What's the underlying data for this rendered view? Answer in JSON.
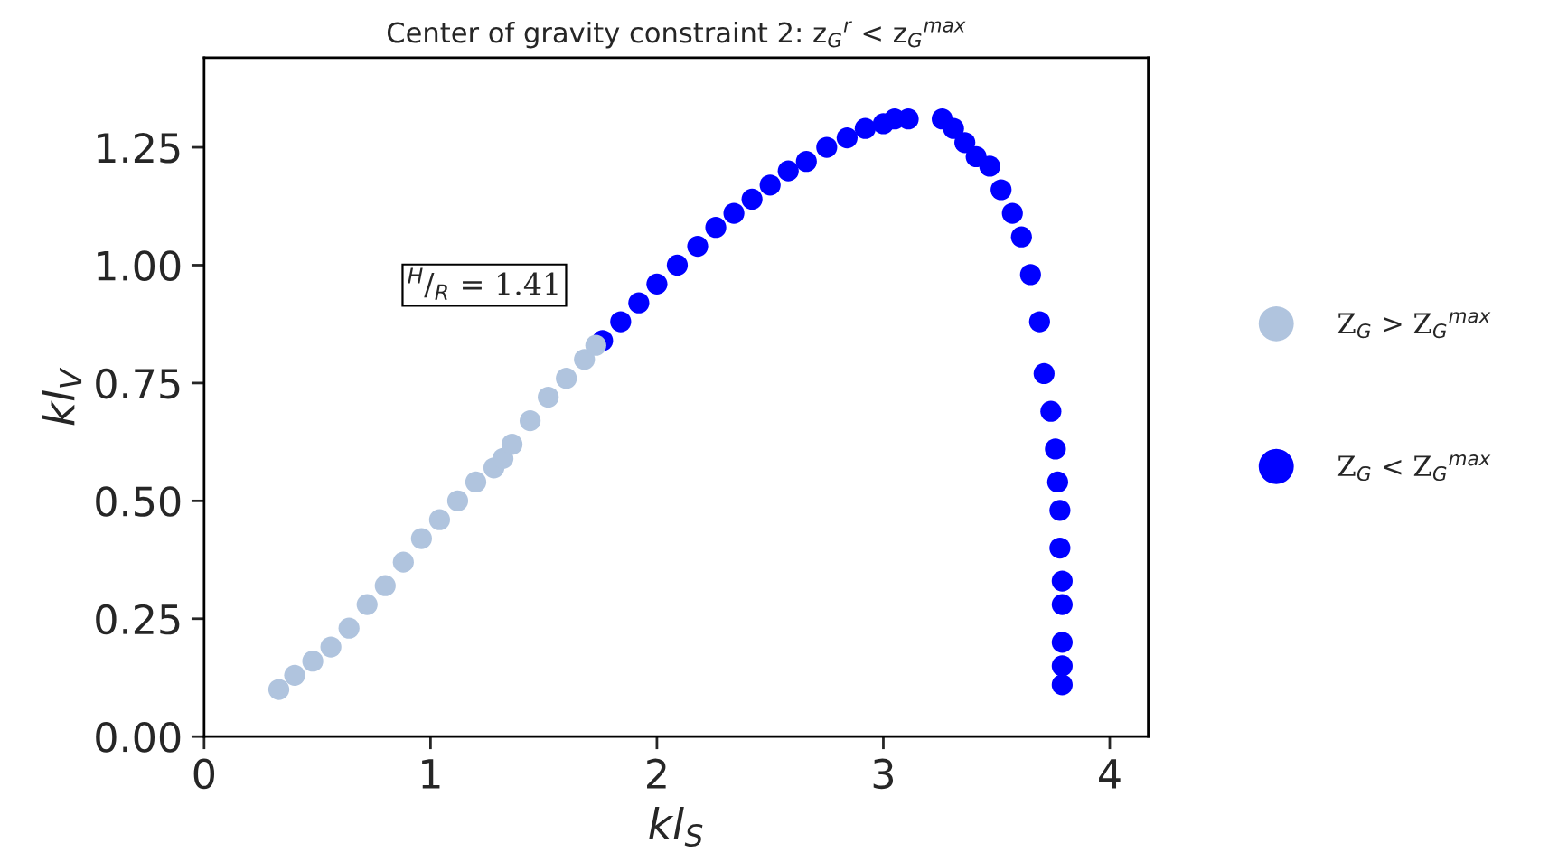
{
  "chart_data": {
    "type": "scatter",
    "title": "Center of gravity constraint 2: z$_{G}$$^{r}$ < z$_{G}$$^{max}$",
    "xlabel": "kl$_{S}$",
    "ylabel": "kl$_{V}$",
    "annotations": [
      "$^{H}$/$_{R}$ = 1.41"
    ],
    "xlim": [
      0,
      4.17
    ],
    "ylim": [
      0,
      1.44
    ],
    "xticks": [
      0,
      1,
      2,
      3,
      4
    ],
    "yticks": [
      {
        "value": 0,
        "label": "0.00"
      },
      {
        "value": 0.25,
        "label": "0.25"
      },
      {
        "value": 0.5,
        "label": "0.50"
      },
      {
        "value": 0.75,
        "label": "0.75"
      },
      {
        "value": 1.0,
        "label": "1.00"
      },
      {
        "value": 1.25,
        "label": "1.25"
      }
    ],
    "grid": false,
    "legend": "right",
    "marker": "circle",
    "series": [
      {
        "name": "Z$_{G}$ > Z$_{G}$$^{max}$",
        "color": "#b0c4de",
        "x": [
          0.33,
          0.4,
          0.48,
          0.56,
          0.64,
          0.72,
          0.8,
          0.88,
          0.96,
          1.04,
          1.12,
          1.2,
          1.28,
          1.32,
          1.36,
          1.44,
          1.52,
          1.6,
          1.68,
          1.73
        ],
        "values": [
          0.1,
          0.13,
          0.16,
          0.19,
          0.23,
          0.28,
          0.32,
          0.37,
          0.42,
          0.46,
          0.5,
          0.54,
          0.57,
          0.59,
          0.62,
          0.67,
          0.72,
          0.76,
          0.8,
          0.83
        ]
      },
      {
        "name": "Z$_{G}$ < Z$_{G}$$^{max}$",
        "color": "#0000ff",
        "x": [
          1.76,
          1.84,
          1.92,
          2.0,
          2.09,
          2.18,
          2.26,
          2.34,
          2.42,
          2.5,
          2.58,
          2.66,
          2.75,
          2.84,
          2.92,
          3.0,
          3.05,
          3.11,
          3.26,
          3.31,
          3.36,
          3.41,
          3.47,
          3.52,
          3.57,
          3.61,
          3.65,
          3.69,
          3.71,
          3.74,
          3.76,
          3.77,
          3.78,
          3.78,
          3.79,
          3.79,
          3.79,
          3.79,
          3.79
        ],
        "values": [
          0.84,
          0.88,
          0.92,
          0.96,
          1.0,
          1.04,
          1.08,
          1.11,
          1.14,
          1.17,
          1.2,
          1.22,
          1.25,
          1.27,
          1.29,
          1.3,
          1.31,
          1.31,
          1.31,
          1.29,
          1.26,
          1.23,
          1.21,
          1.16,
          1.11,
          1.06,
          0.98,
          0.88,
          0.77,
          0.69,
          0.61,
          0.54,
          0.48,
          0.4,
          0.33,
          0.28,
          0.2,
          0.15,
          0.11
        ]
      }
    ]
  }
}
